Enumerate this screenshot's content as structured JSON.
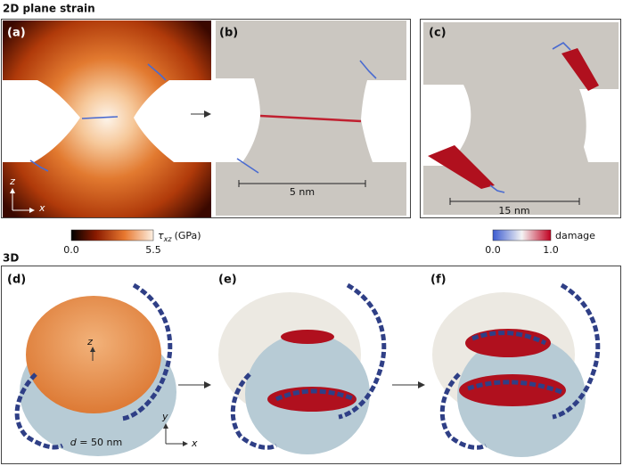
{
  "header": {
    "title": "2D plane strain"
  },
  "panels_2d": [
    {
      "label": "(a)"
    },
    {
      "label": "(b)",
      "scale_bar": "5 nm"
    },
    {
      "label": "(c)",
      "scale_bar": "15 nm"
    }
  ],
  "axes_2d": {
    "vertical": "z",
    "horizontal": "x"
  },
  "colorbars": [
    {
      "symbol": "τ",
      "subscript": "xz",
      "unit": "(GPa)",
      "min": "0.0",
      "max": "5.5"
    },
    {
      "label": "damage",
      "min": "0.0",
      "max": "1.0"
    }
  ],
  "section_3d": {
    "title": "3D",
    "panels": [
      "(d)",
      "(e)",
      "(f)"
    ],
    "axis_label": "z",
    "diameter": {
      "symbol": "d",
      "text": "= 50 nm"
    },
    "axes": {
      "vertical": "y",
      "horizontal": "x"
    }
  }
}
